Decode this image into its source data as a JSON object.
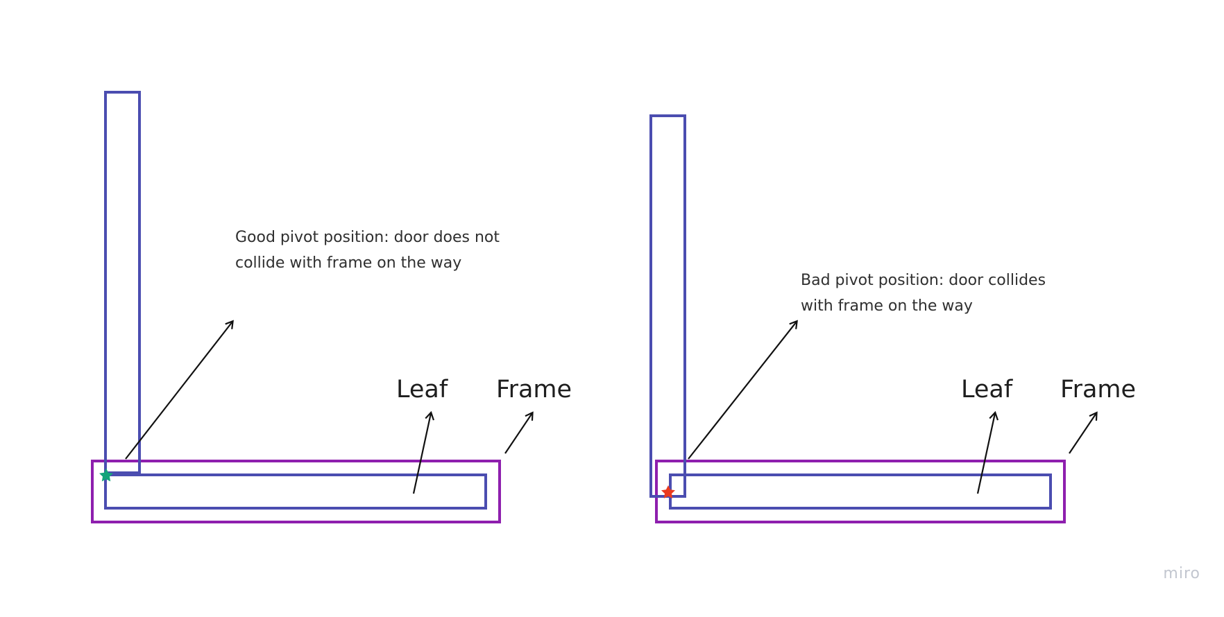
{
  "colors": {
    "leaf": "#4b4db0",
    "frame": "#8e1fae",
    "arrow": "#111111",
    "good_pivot": "#14a37b",
    "bad_pivot": "#ea3a1f"
  },
  "left_scene": {
    "note": "Good pivot position: door does not collide with frame on the way",
    "leaf_label": "Leaf",
    "frame_label": "Frame"
  },
  "right_scene": {
    "note": "Bad pivot position: door collides with frame on the way",
    "leaf_label": "Leaf",
    "frame_label": "Frame"
  },
  "watermark": "miro"
}
